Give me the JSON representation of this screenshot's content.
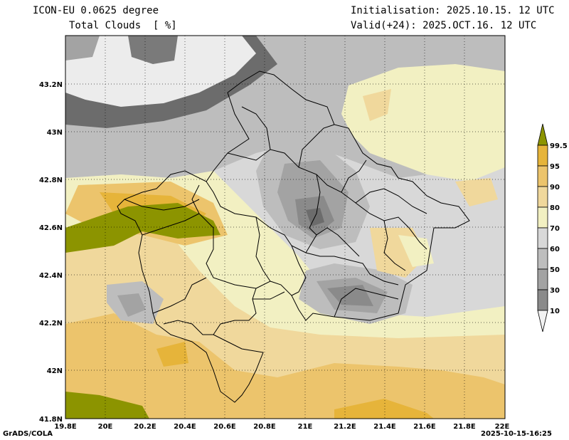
{
  "header": {
    "model": "ICON-EU 0.0625 degree",
    "variable": "Total Clouds  [ %]",
    "init": "Initialisation: 2025.10.15. 12 UTC",
    "valid": "Valid(+24): 2025.OCT.16. 12 UTC"
  },
  "axes": {
    "x_labels": [
      "19.8E",
      "20E",
      "20.2E",
      "20.4E",
      "20.6E",
      "20.8E",
      "21E",
      "21.2E",
      "21.4E",
      "21.6E",
      "21.8E",
      "22E"
    ],
    "y_labels": [
      "43.2N",
      "43N",
      "42.8N",
      "42.6N",
      "42.4N",
      "42.2N",
      "42N",
      "41.8N"
    ]
  },
  "legend": {
    "levels": [
      "99.5",
      "95",
      "90",
      "80",
      "70",
      "60",
      "50",
      "30",
      "10"
    ],
    "colors": {
      "top": "#8c9400",
      "b95_99": "#e6b43a",
      "b90_95": "#ecc46c",
      "b80_90": "#f0d89c",
      "b70_80": "#f2f0c2",
      "b60_70": "#d8d8d8",
      "b50_60": "#bdbdbd",
      "b30_50": "#a3a3a3",
      "b10_30": "#8a8a8a",
      "lt10": "#6c6c6c",
      "bottom": "#f2f2f2"
    }
  },
  "footer": {
    "left": "GrADS/COLA",
    "right": "2025-10-15-16:25"
  }
}
